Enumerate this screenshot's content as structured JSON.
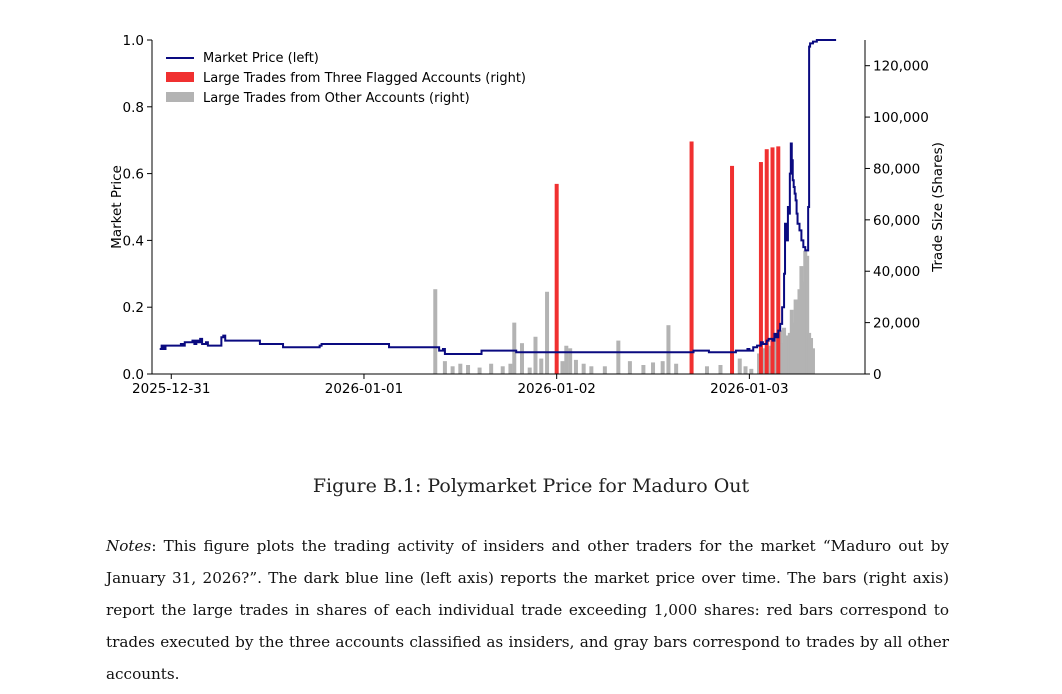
{
  "chart_data": {
    "type": "line+bar",
    "xlabel": "",
    "ylabel_left": "Market Price",
    "ylabel_right": "Trade Size (Shares)",
    "ylim_left": [
      0,
      1.0
    ],
    "ylim_right": [
      0,
      130000
    ],
    "xlim": [
      -0.1,
      3.6
    ],
    "left_ticks": [
      "0.0",
      "0.2",
      "0.4",
      "0.6",
      "0.8",
      "1.0"
    ],
    "right_ticks": [
      "0",
      "20,000",
      "40,000",
      "60,000",
      "80,000",
      "100,000",
      "120,000"
    ],
    "x_ticks": [
      {
        "value": 0,
        "label": "2025-12-31"
      },
      {
        "value": 1,
        "label": "2026-01-01"
      },
      {
        "value": 2,
        "label": "2026-01-02"
      },
      {
        "value": 3,
        "label": "2026-01-03"
      }
    ],
    "legend": [
      {
        "label": "Market Price (left)",
        "color": "#0a0a80"
      },
      {
        "label": "Large Trades from Three Flagged Accounts (right)",
        "color": "#f03030"
      },
      {
        "label": "Large Trades from Other Accounts (right)",
        "color": "#b3b3b3"
      }
    ],
    "price_series": [
      [
        -0.06,
        0.075
      ],
      [
        -0.05,
        0.085
      ],
      [
        -0.04,
        0.075
      ],
      [
        -0.03,
        0.085
      ],
      [
        0.04,
        0.085
      ],
      [
        0.05,
        0.09
      ],
      [
        0.06,
        0.085
      ],
      [
        0.07,
        0.095
      ],
      [
        0.1,
        0.095
      ],
      [
        0.11,
        0.1
      ],
      [
        0.12,
        0.09
      ],
      [
        0.13,
        0.1
      ],
      [
        0.14,
        0.095
      ],
      [
        0.15,
        0.105
      ],
      [
        0.16,
        0.09
      ],
      [
        0.18,
        0.095
      ],
      [
        0.19,
        0.085
      ],
      [
        0.25,
        0.085
      ],
      [
        0.26,
        0.11
      ],
      [
        0.27,
        0.115
      ],
      [
        0.28,
        0.1
      ],
      [
        0.45,
        0.1
      ],
      [
        0.46,
        0.09
      ],
      [
        0.57,
        0.09
      ],
      [
        0.58,
        0.08
      ],
      [
        0.76,
        0.08
      ],
      [
        0.77,
        0.085
      ],
      [
        0.78,
        0.09
      ],
      [
        1.12,
        0.09
      ],
      [
        1.13,
        0.08
      ],
      [
        1.38,
        0.08
      ],
      [
        1.39,
        0.07
      ],
      [
        1.41,
        0.075
      ],
      [
        1.42,
        0.06
      ],
      [
        1.6,
        0.06
      ],
      [
        1.61,
        0.07
      ],
      [
        1.78,
        0.07
      ],
      [
        1.79,
        0.065
      ],
      [
        2.3,
        0.065
      ],
      [
        2.7,
        0.065
      ],
      [
        2.71,
        0.07
      ],
      [
        2.73,
        0.07
      ],
      [
        2.79,
        0.065
      ],
      [
        2.92,
        0.065
      ],
      [
        2.93,
        0.07
      ],
      [
        2.98,
        0.07
      ],
      [
        2.99,
        0.075
      ],
      [
        3.0,
        0.07
      ],
      [
        3.02,
        0.08
      ],
      [
        3.04,
        0.085
      ],
      [
        3.06,
        0.095
      ],
      [
        3.07,
        0.09
      ],
      [
        3.09,
        0.1
      ],
      [
        3.1,
        0.105
      ],
      [
        3.12,
        0.1
      ],
      [
        3.13,
        0.12
      ],
      [
        3.14,
        0.11
      ],
      [
        3.15,
        0.13
      ],
      [
        3.16,
        0.15
      ],
      [
        3.17,
        0.2
      ],
      [
        3.18,
        0.3
      ],
      [
        3.185,
        0.45
      ],
      [
        3.19,
        0.4
      ],
      [
        3.2,
        0.5
      ],
      [
        3.205,
        0.48
      ],
      [
        3.21,
        0.6
      ],
      [
        3.215,
        0.69
      ],
      [
        3.22,
        0.64
      ],
      [
        3.225,
        0.58
      ],
      [
        3.23,
        0.56
      ],
      [
        3.235,
        0.54
      ],
      [
        3.24,
        0.52
      ],
      [
        3.245,
        0.48
      ],
      [
        3.25,
        0.45
      ],
      [
        3.26,
        0.43
      ],
      [
        3.27,
        0.4
      ],
      [
        3.28,
        0.38
      ],
      [
        3.29,
        0.37
      ],
      [
        3.3,
        0.37
      ],
      [
        3.305,
        0.5
      ],
      [
        3.31,
        0.98
      ],
      [
        3.315,
        0.99
      ],
      [
        3.33,
        0.995
      ],
      [
        3.35,
        1.0
      ],
      [
        3.45,
        1.0
      ]
    ],
    "red_bars": [
      {
        "x": 2.0,
        "shares": 74000
      },
      {
        "x": 2.7,
        "shares": 90500
      },
      {
        "x": 2.91,
        "shares": 81000
      },
      {
        "x": 3.06,
        "shares": 82500
      },
      {
        "x": 3.09,
        "shares": 87500
      },
      {
        "x": 3.12,
        "shares": 88200
      },
      {
        "x": 3.15,
        "shares": 88600
      }
    ],
    "gray_bars": [
      {
        "x": 1.37,
        "shares": 33000
      },
      {
        "x": 1.42,
        "shares": 5000
      },
      {
        "x": 1.46,
        "shares": 3000
      },
      {
        "x": 1.5,
        "shares": 4000
      },
      {
        "x": 1.54,
        "shares": 3500
      },
      {
        "x": 1.6,
        "shares": 2500
      },
      {
        "x": 1.66,
        "shares": 4000
      },
      {
        "x": 1.72,
        "shares": 3000
      },
      {
        "x": 1.76,
        "shares": 4000
      },
      {
        "x": 1.78,
        "shares": 20000
      },
      {
        "x": 1.82,
        "shares": 12000
      },
      {
        "x": 1.86,
        "shares": 2500
      },
      {
        "x": 1.89,
        "shares": 14500
      },
      {
        "x": 1.92,
        "shares": 6000
      },
      {
        "x": 1.95,
        "shares": 32000
      },
      {
        "x": 2.03,
        "shares": 5000
      },
      {
        "x": 2.05,
        "shares": 11000
      },
      {
        "x": 2.07,
        "shares": 10000
      },
      {
        "x": 2.1,
        "shares": 5500
      },
      {
        "x": 2.14,
        "shares": 4000
      },
      {
        "x": 2.18,
        "shares": 3000
      },
      {
        "x": 2.25,
        "shares": 3000
      },
      {
        "x": 2.32,
        "shares": 13000
      },
      {
        "x": 2.38,
        "shares": 5000
      },
      {
        "x": 2.45,
        "shares": 3500
      },
      {
        "x": 2.5,
        "shares": 4500
      },
      {
        "x": 2.55,
        "shares": 5000
      },
      {
        "x": 2.58,
        "shares": 19000
      },
      {
        "x": 2.62,
        "shares": 4000
      },
      {
        "x": 2.78,
        "shares": 3000
      },
      {
        "x": 2.85,
        "shares": 3500
      },
      {
        "x": 2.95,
        "shares": 6000
      },
      {
        "x": 2.98,
        "shares": 3000
      },
      {
        "x": 3.01,
        "shares": 2000
      },
      {
        "x": 3.05,
        "shares": 8000
      },
      {
        "x": 3.08,
        "shares": 10000
      },
      {
        "x": 3.11,
        "shares": 11000
      },
      {
        "x": 3.13,
        "shares": 9000
      },
      {
        "x": 3.14,
        "shares": 14000
      },
      {
        "x": 3.16,
        "shares": 17000
      },
      {
        "x": 3.17,
        "shares": 12000
      },
      {
        "x": 3.18,
        "shares": 18000
      },
      {
        "x": 3.19,
        "shares": 15000
      },
      {
        "x": 3.2,
        "shares": 13000
      },
      {
        "x": 3.21,
        "shares": 16000
      },
      {
        "x": 3.22,
        "shares": 25000
      },
      {
        "x": 3.23,
        "shares": 20000
      },
      {
        "x": 3.24,
        "shares": 29000
      },
      {
        "x": 3.25,
        "shares": 22000
      },
      {
        "x": 3.26,
        "shares": 33000
      },
      {
        "x": 3.27,
        "shares": 42000
      },
      {
        "x": 3.28,
        "shares": 36000
      },
      {
        "x": 3.29,
        "shares": 48000
      },
      {
        "x": 3.3,
        "shares": 46000
      },
      {
        "x": 3.31,
        "shares": 16000
      },
      {
        "x": 3.32,
        "shares": 14000
      },
      {
        "x": 3.33,
        "shares": 10000
      }
    ]
  },
  "caption": "Figure B.1: Polymarket Price for Maduro Out",
  "notes": {
    "label": "Notes",
    "text": ": This figure plots the trading activity of insiders and other traders for the market “Maduro out by January 31, 2026?”. The dark blue line (left axis) reports the market price over time. The bars (right axis) report the large trades in shares of each individual trade exceeding 1,000 shares: red bars correspond to trades executed by the three accounts classified as insiders, and gray bars correspond to trades by all other accounts."
  }
}
